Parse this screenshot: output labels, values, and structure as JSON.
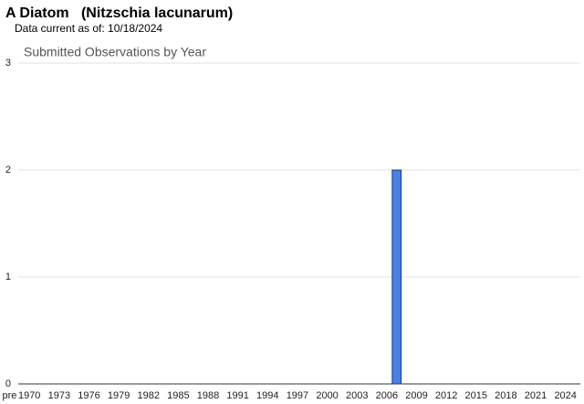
{
  "chart_data": {
    "type": "bar",
    "title": "A Diatom   (Nitzschia lacunarum)",
    "subtitle": "Data current as of: 10/18/2024",
    "chart_title": "Submitted Observations by Year",
    "categories": [
      "pre",
      null,
      "1970",
      null,
      null,
      "1973",
      null,
      null,
      "1976",
      null,
      null,
      "1979",
      null,
      null,
      "1982",
      null,
      null,
      "1985",
      null,
      null,
      "1988",
      null,
      null,
      "1991",
      null,
      null,
      "1994",
      null,
      null,
      "1997",
      null,
      null,
      "2000",
      null,
      null,
      "2003",
      null,
      null,
      "2006",
      null,
      null,
      "2009",
      null,
      null,
      "2012",
      null,
      null,
      "2015",
      null,
      null,
      "2018",
      null,
      null,
      "2021",
      null,
      null,
      "2024",
      null
    ],
    "values": [
      0,
      0,
      0,
      0,
      0,
      0,
      0,
      0,
      0,
      0,
      0,
      0,
      0,
      0,
      0,
      0,
      0,
      0,
      0,
      0,
      0,
      0,
      0,
      0,
      0,
      0,
      0,
      0,
      0,
      0,
      0,
      0,
      0,
      0,
      0,
      0,
      0,
      0,
      0,
      2,
      0,
      0,
      0,
      0,
      0,
      0,
      0,
      0,
      0,
      0,
      0,
      0,
      0,
      0,
      0,
      0,
      0,
      0
    ],
    "color": "#4a80e0",
    "ylim": [
      0,
      3
    ],
    "yticks": [
      0,
      1,
      2,
      3
    ],
    "grid": true
  }
}
